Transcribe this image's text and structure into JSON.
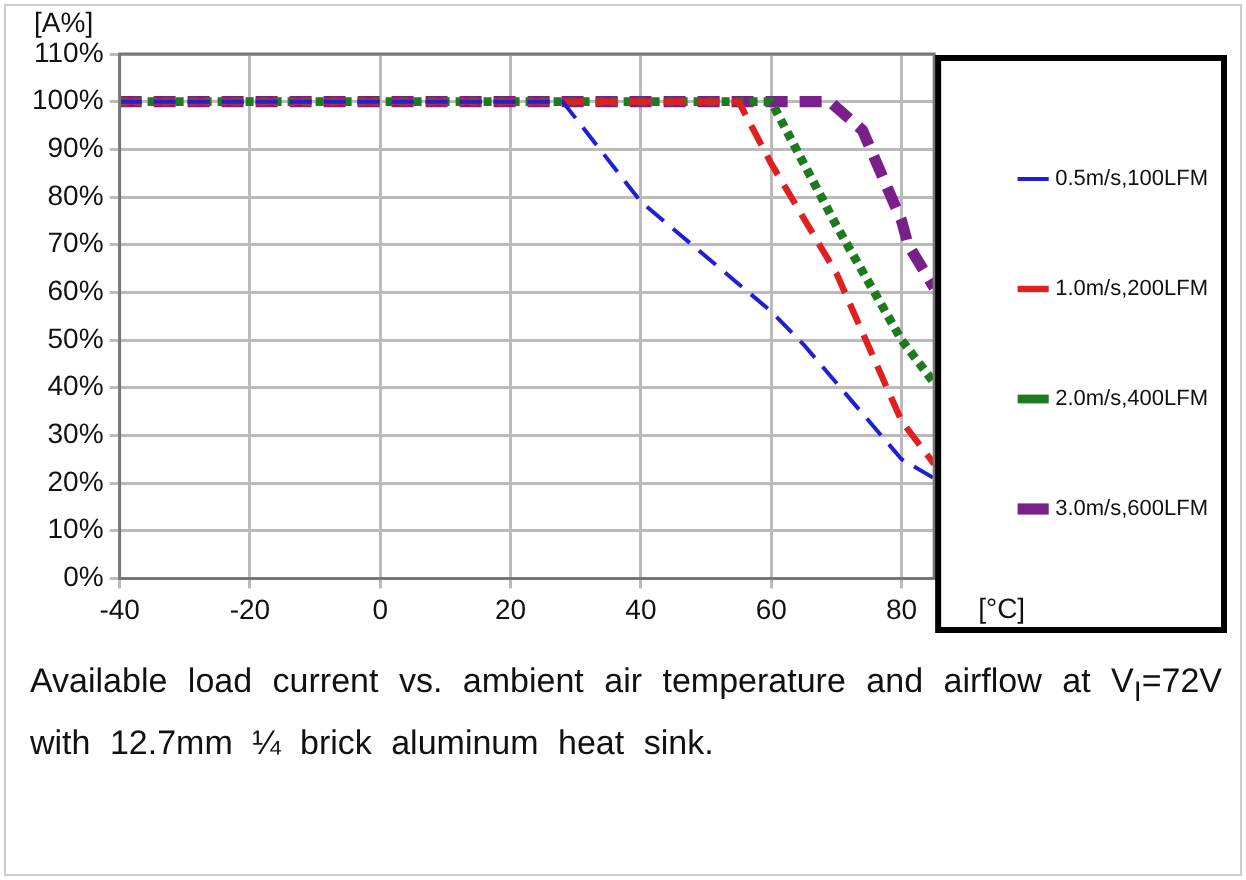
{
  "chart_data": {
    "type": "line",
    "xlabel": "[°C]",
    "ylabel": "[A%]",
    "xlim": [
      -40,
      85
    ],
    "xticks": [
      -40,
      -20,
      0,
      20,
      40,
      60,
      80
    ],
    "ylim": [
      0,
      110
    ],
    "yticks": [
      {
        "value": 0,
        "label": "0%"
      },
      {
        "value": 10,
        "label": "10%"
      },
      {
        "value": 20,
        "label": "20%"
      },
      {
        "value": 30,
        "label": "30%"
      },
      {
        "value": 40,
        "label": "40%"
      },
      {
        "value": 50,
        "label": "50%"
      },
      {
        "value": 60,
        "label": "60%"
      },
      {
        "value": 70,
        "label": "70%"
      },
      {
        "value": 80,
        "label": "80%"
      },
      {
        "value": 90,
        "label": "90%"
      },
      {
        "value": 100,
        "label": "100%"
      },
      {
        "value": 110,
        "label": "110%"
      }
    ],
    "grid": true,
    "legend": "right",
    "marker": "none",
    "series": [
      {
        "name": "0.5m/s,100LFM",
        "color": "#1f1fd6",
        "line_style": "dashed",
        "x": [
          -40,
          28,
          40,
          60,
          65,
          80,
          85
        ],
        "values": [
          100,
          100,
          79,
          56,
          49,
          25,
          21
        ]
      },
      {
        "name": "1.0m/s,200LFM",
        "color": "#e02020",
        "line_style": "dashed",
        "x": [
          -40,
          55,
          60,
          70,
          80,
          85
        ],
        "values": [
          100,
          100,
          87,
          64,
          33,
          24
        ]
      },
      {
        "name": "2.0m/s,400LFM",
        "color": "#1e7a1e",
        "line_style": "dotted",
        "x": [
          -40,
          60,
          70,
          80,
          85
        ],
        "values": [
          100,
          100,
          74,
          50,
          41
        ]
      },
      {
        "name": "3.0m/s,600LFM",
        "color": "#7a1f8a",
        "line_style": "dashed",
        "x": [
          -40,
          69,
          74,
          80,
          81,
          85
        ],
        "values": [
          100,
          100,
          94,
          75,
          70,
          61
        ]
      }
    ],
    "annotations": [
      "Available load current vs. ambient air temperature and airflow at V$_{I}$=72V with 12.7mm ¼ brick aluminum heat sink."
    ]
  }
}
